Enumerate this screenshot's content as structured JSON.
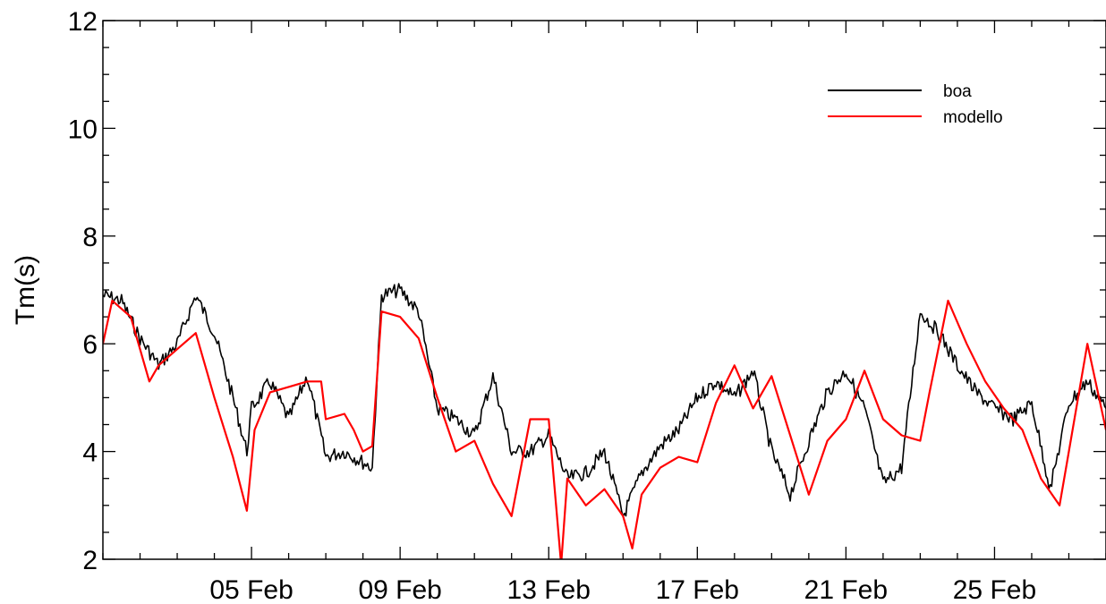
{
  "chart_data": {
    "type": "line",
    "title": "",
    "xlabel": "",
    "ylabel": "Tm(s)",
    "ylim": [
      2,
      12
    ],
    "xlim": [
      "2024-02-01",
      "2024-02-28"
    ],
    "yticks": [
      2,
      4,
      6,
      8,
      10,
      12
    ],
    "yticks_minor_step": 0.5,
    "xticks": [
      {
        "date": "2024-02-05",
        "label": "05 Feb"
      },
      {
        "date": "2024-02-09",
        "label": "09 Feb"
      },
      {
        "date": "2024-02-13",
        "label": "13 Feb"
      },
      {
        "date": "2024-02-17",
        "label": "17 Feb"
      },
      {
        "date": "2024-02-21",
        "label": "21 Feb"
      },
      {
        "date": "2024-02-25",
        "label": "25 Feb"
      }
    ],
    "grid": false,
    "legend": "top-right",
    "series": [
      {
        "name": "boa",
        "color": "#000000",
        "noisy": true,
        "x": [
          "2024-02-01T00:00",
          "2024-02-01T12:00",
          "2024-02-02T00:00",
          "2024-02-02T12:00",
          "2024-02-03T00:00",
          "2024-02-03T12:00",
          "2024-02-04T00:00",
          "2024-02-04T12:00",
          "2024-02-04T21:00",
          "2024-02-05T00:00",
          "2024-02-05T12:00",
          "2024-02-06T00:00",
          "2024-02-06T12:00",
          "2024-02-07T00:00",
          "2024-02-07T12:00",
          "2024-02-08T00:00",
          "2024-02-08T06:00",
          "2024-02-08T12:00",
          "2024-02-09T00:00",
          "2024-02-09T12:00",
          "2024-02-10T00:00",
          "2024-02-10T12:00",
          "2024-02-11T00:00",
          "2024-02-11T12:00",
          "2024-02-12T00:00",
          "2024-02-12T12:00",
          "2024-02-13T00:00",
          "2024-02-13T12:00",
          "2024-02-14T00:00",
          "2024-02-14T12:00",
          "2024-02-15T00:00",
          "2024-02-15T12:00",
          "2024-02-16T00:00",
          "2024-02-16T12:00",
          "2024-02-17T00:00",
          "2024-02-17T12:00",
          "2024-02-18T00:00",
          "2024-02-18T12:00",
          "2024-02-19T00:00",
          "2024-02-19T12:00",
          "2024-02-20T00:00",
          "2024-02-20T12:00",
          "2024-02-21T00:00",
          "2024-02-21T12:00",
          "2024-02-22T00:00",
          "2024-02-22T12:00",
          "2024-02-23T00:00",
          "2024-02-23T12:00",
          "2024-02-24T00:00",
          "2024-02-24T12:00",
          "2024-02-25T00:00",
          "2024-02-25T12:00",
          "2024-02-26T00:00",
          "2024-02-26T12:00",
          "2024-02-27T00:00",
          "2024-02-27T12:00",
          "2024-02-28T00:00"
        ],
        "y": [
          6.9,
          6.8,
          6.1,
          5.6,
          6.0,
          6.9,
          6.2,
          5.0,
          4.0,
          4.8,
          5.3,
          4.6,
          5.4,
          3.9,
          4.0,
          3.8,
          3.7,
          6.9,
          7.0,
          6.6,
          4.8,
          4.6,
          4.3,
          5.4,
          4.0,
          4.0,
          4.3,
          3.5,
          3.6,
          4.0,
          2.8,
          3.6,
          4.1,
          4.4,
          5.0,
          5.3,
          5.0,
          5.5,
          4.0,
          3.2,
          4.2,
          5.1,
          5.5,
          4.8,
          3.4,
          3.7,
          6.6,
          6.2,
          5.6,
          5.1,
          4.8,
          4.6,
          4.9,
          3.3,
          4.9,
          5.3,
          4.8
        ]
      },
      {
        "name": "modello",
        "color": "#ff0000",
        "noisy": false,
        "x": [
          "2024-02-01T00:00",
          "2024-02-01T06:00",
          "2024-02-01T18:00",
          "2024-02-02T06:00",
          "2024-02-02T12:00",
          "2024-02-03T00:00",
          "2024-02-03T12:00",
          "2024-02-04T00:00",
          "2024-02-04T12:00",
          "2024-02-04T21:00",
          "2024-02-05T02:00",
          "2024-02-05T12:00",
          "2024-02-06T00:00",
          "2024-02-06T12:00",
          "2024-02-06T21:00",
          "2024-02-07T00:00",
          "2024-02-07T12:00",
          "2024-02-07T18:00",
          "2024-02-08T00:00",
          "2024-02-08T06:00",
          "2024-02-08T12:00",
          "2024-02-09T00:00",
          "2024-02-09T12:00",
          "2024-02-10T00:00",
          "2024-02-10T12:00",
          "2024-02-11T00:00",
          "2024-02-11T12:00",
          "2024-02-12T00:00",
          "2024-02-12T12:00",
          "2024-02-13T00:00",
          "2024-02-13T08:00",
          "2024-02-13T12:00",
          "2024-02-14T00:00",
          "2024-02-14T12:00",
          "2024-02-15T00:00",
          "2024-02-15T06:00",
          "2024-02-15T12:00",
          "2024-02-16T00:00",
          "2024-02-16T12:00",
          "2024-02-17T00:00",
          "2024-02-17T12:00",
          "2024-02-18T00:00",
          "2024-02-18T12:00",
          "2024-02-19T00:00",
          "2024-02-19T12:00",
          "2024-02-20T00:00",
          "2024-02-20T12:00",
          "2024-02-21T00:00",
          "2024-02-21T12:00",
          "2024-02-22T00:00",
          "2024-02-22T12:00",
          "2024-02-23T00:00",
          "2024-02-23T06:00",
          "2024-02-23T18:00",
          "2024-02-24T06:00",
          "2024-02-24T18:00",
          "2024-02-25T06:00",
          "2024-02-25T18:00",
          "2024-02-26T06:00",
          "2024-02-26T18:00",
          "2024-02-27T00:00",
          "2024-02-27T12:00",
          "2024-02-28T00:00"
        ],
        "y": [
          6.0,
          6.8,
          6.5,
          5.3,
          5.6,
          5.9,
          6.2,
          5.0,
          3.9,
          2.9,
          4.4,
          5.1,
          5.2,
          5.3,
          5.3,
          4.6,
          4.7,
          4.4,
          4.0,
          4.1,
          6.6,
          6.5,
          6.1,
          5.0,
          4.0,
          4.2,
          3.4,
          2.8,
          4.6,
          4.6,
          1.9,
          3.5,
          3.0,
          3.3,
          2.8,
          2.2,
          3.2,
          3.7,
          3.9,
          3.8,
          4.9,
          5.6,
          4.8,
          5.4,
          4.3,
          3.2,
          4.2,
          4.6,
          5.5,
          4.6,
          4.3,
          4.2,
          5.1,
          6.8,
          6.0,
          5.3,
          4.8,
          4.4,
          3.5,
          3.0,
          4.0,
          6.0,
          4.4
        ]
      }
    ]
  }
}
